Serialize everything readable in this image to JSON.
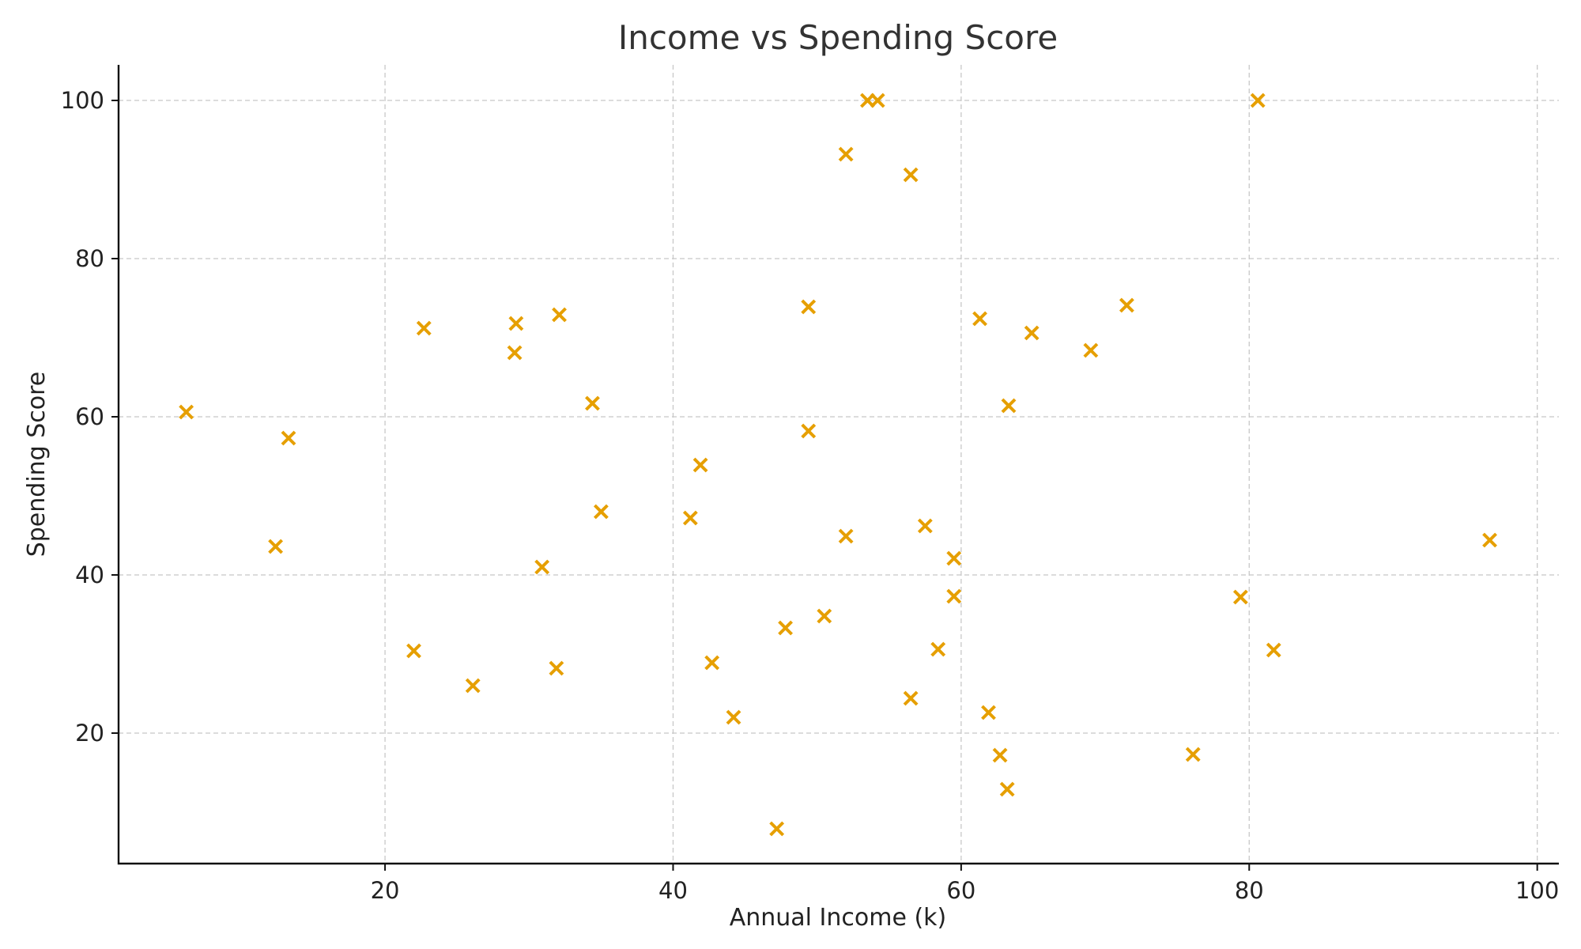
{
  "chart_data": {
    "type": "scatter",
    "title": "Income vs Spending Score",
    "xlabel": "Annual Income (k)",
    "ylabel": "Spending Score",
    "xlim": [
      1.5,
      101.5
    ],
    "ylim": [
      3.5,
      104.5
    ],
    "xticks": [
      20,
      40,
      60,
      80,
      100
    ],
    "yticks": [
      20,
      40,
      60,
      80,
      100
    ],
    "grid": true,
    "marker": "x",
    "color": "#E69F00",
    "points": [
      {
        "x": 6.2,
        "y": 60.6
      },
      {
        "x": 12.4,
        "y": 43.6
      },
      {
        "x": 13.3,
        "y": 57.3
      },
      {
        "x": 22.0,
        "y": 30.4
      },
      {
        "x": 22.7,
        "y": 71.2
      },
      {
        "x": 26.1,
        "y": 26.0
      },
      {
        "x": 29.0,
        "y": 68.1
      },
      {
        "x": 29.1,
        "y": 71.8
      },
      {
        "x": 30.9,
        "y": 41.0
      },
      {
        "x": 31.9,
        "y": 28.2
      },
      {
        "x": 32.1,
        "y": 72.9
      },
      {
        "x": 34.4,
        "y": 61.7
      },
      {
        "x": 35.0,
        "y": 48.0
      },
      {
        "x": 41.2,
        "y": 47.2
      },
      {
        "x": 41.9,
        "y": 53.9
      },
      {
        "x": 42.7,
        "y": 28.9
      },
      {
        "x": 44.2,
        "y": 22.0
      },
      {
        "x": 47.2,
        "y": 7.9
      },
      {
        "x": 47.8,
        "y": 33.3
      },
      {
        "x": 49.4,
        "y": 73.9
      },
      {
        "x": 49.4,
        "y": 58.2
      },
      {
        "x": 50.5,
        "y": 34.8
      },
      {
        "x": 52.0,
        "y": 93.2
      },
      {
        "x": 52.0,
        "y": 44.9
      },
      {
        "x": 53.5,
        "y": 100.0
      },
      {
        "x": 54.2,
        "y": 100.0
      },
      {
        "x": 56.5,
        "y": 90.6
      },
      {
        "x": 56.5,
        "y": 24.4
      },
      {
        "x": 57.5,
        "y": 46.2
      },
      {
        "x": 58.4,
        "y": 30.6
      },
      {
        "x": 59.5,
        "y": 42.1
      },
      {
        "x": 59.5,
        "y": 37.3
      },
      {
        "x": 61.3,
        "y": 72.4
      },
      {
        "x": 61.9,
        "y": 22.6
      },
      {
        "x": 62.7,
        "y": 17.2
      },
      {
        "x": 63.2,
        "y": 12.9
      },
      {
        "x": 63.3,
        "y": 61.4
      },
      {
        "x": 64.9,
        "y": 70.6
      },
      {
        "x": 69.0,
        "y": 68.4
      },
      {
        "x": 71.5,
        "y": 74.1
      },
      {
        "x": 76.1,
        "y": 17.3
      },
      {
        "x": 79.4,
        "y": 37.2
      },
      {
        "x": 80.6,
        "y": 100.0
      },
      {
        "x": 81.7,
        "y": 30.5
      },
      {
        "x": 96.7,
        "y": 44.4
      }
    ]
  }
}
